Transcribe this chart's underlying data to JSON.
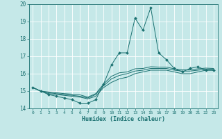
{
  "title": "",
  "xlabel": "Humidex (Indice chaleur)",
  "ylabel": "",
  "xlim": [
    -0.5,
    23.5
  ],
  "ylim": [
    14,
    20
  ],
  "yticks": [
    14,
    15,
    16,
    17,
    18,
    19,
    20
  ],
  "xticks": [
    0,
    1,
    2,
    3,
    4,
    5,
    6,
    7,
    8,
    9,
    10,
    11,
    12,
    13,
    14,
    15,
    16,
    17,
    18,
    19,
    20,
    21,
    22,
    23
  ],
  "bg_color": "#c5e8e8",
  "line_color": "#1a7070",
  "grid_color": "#ffffff",
  "series": [
    {
      "x": [
        0,
        1,
        2,
        3,
        4,
        5,
        6,
        7,
        8,
        9,
        10,
        11,
        12,
        13,
        14,
        15,
        16,
        17,
        18,
        19,
        20,
        21,
        22,
        23
      ],
      "y": [
        15.2,
        15.0,
        14.8,
        14.7,
        14.6,
        14.5,
        14.3,
        14.3,
        14.5,
        15.4,
        16.5,
        17.2,
        17.2,
        19.2,
        18.5,
        19.8,
        17.2,
        16.8,
        16.3,
        16.1,
        16.3,
        16.4,
        16.2,
        16.2
      ],
      "marker": "D",
      "markersize": 2.0
    },
    {
      "x": [
        0,
        1,
        2,
        3,
        4,
        5,
        6,
        7,
        8,
        9,
        10,
        11,
        12,
        13,
        14,
        15,
        16,
        17,
        18,
        19,
        20,
        21,
        22,
        23
      ],
      "y": [
        15.2,
        15.0,
        14.85,
        14.8,
        14.75,
        14.7,
        14.65,
        14.55,
        14.7,
        15.2,
        15.5,
        15.7,
        15.8,
        16.0,
        16.1,
        16.2,
        16.2,
        16.2,
        16.1,
        16.0,
        16.0,
        16.1,
        16.2,
        16.2
      ],
      "marker": null,
      "markersize": 0
    },
    {
      "x": [
        0,
        1,
        2,
        3,
        4,
        5,
        6,
        7,
        8,
        9,
        10,
        11,
        12,
        13,
        14,
        15,
        16,
        17,
        18,
        19,
        20,
        21,
        22,
        23
      ],
      "y": [
        15.2,
        15.0,
        14.9,
        14.85,
        14.8,
        14.75,
        14.7,
        14.6,
        14.8,
        15.3,
        15.7,
        15.9,
        16.0,
        16.15,
        16.2,
        16.3,
        16.3,
        16.3,
        16.2,
        16.15,
        16.15,
        16.2,
        16.25,
        16.25
      ],
      "marker": null,
      "markersize": 0
    },
    {
      "x": [
        0,
        1,
        2,
        3,
        4,
        5,
        6,
        7,
        8,
        9,
        10,
        11,
        12,
        13,
        14,
        15,
        16,
        17,
        18,
        19,
        20,
        21,
        22,
        23
      ],
      "y": [
        15.2,
        15.0,
        14.95,
        14.9,
        14.85,
        14.82,
        14.78,
        14.65,
        14.85,
        15.4,
        15.85,
        16.05,
        16.1,
        16.28,
        16.3,
        16.4,
        16.38,
        16.38,
        16.28,
        16.22,
        16.22,
        16.28,
        16.32,
        16.3
      ],
      "marker": null,
      "markersize": 0
    }
  ]
}
